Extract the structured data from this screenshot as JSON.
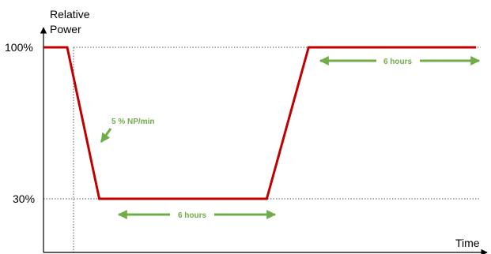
{
  "chart_data": {
    "type": "line",
    "title": "",
    "ylabel": "Relative Power",
    "xlabel": "Time",
    "y_ticks": [
      "100%",
      "30%"
    ],
    "y_tick_values": [
      100,
      30
    ],
    "ylim": [
      0,
      110
    ],
    "series": [
      {
        "color": "#c00000",
        "points": [
          {
            "t": 0,
            "p": 100
          },
          {
            "t": 0.85,
            "p": 100
          },
          {
            "t": 2.0,
            "p": 30
          },
          {
            "t": 8.0,
            "p": 30
          },
          {
            "t": 9.5,
            "p": 100
          },
          {
            "t": 15.5,
            "p": 100
          }
        ]
      }
    ],
    "annotations": [
      {
        "label": "5 % NP/min",
        "color": "#70ad47"
      },
      {
        "label": "6 hours",
        "color": "#70ad47"
      },
      {
        "label": "6 hours",
        "color": "#70ad47"
      }
    ],
    "grid": "dotted reference lines at 100% and 30%"
  }
}
